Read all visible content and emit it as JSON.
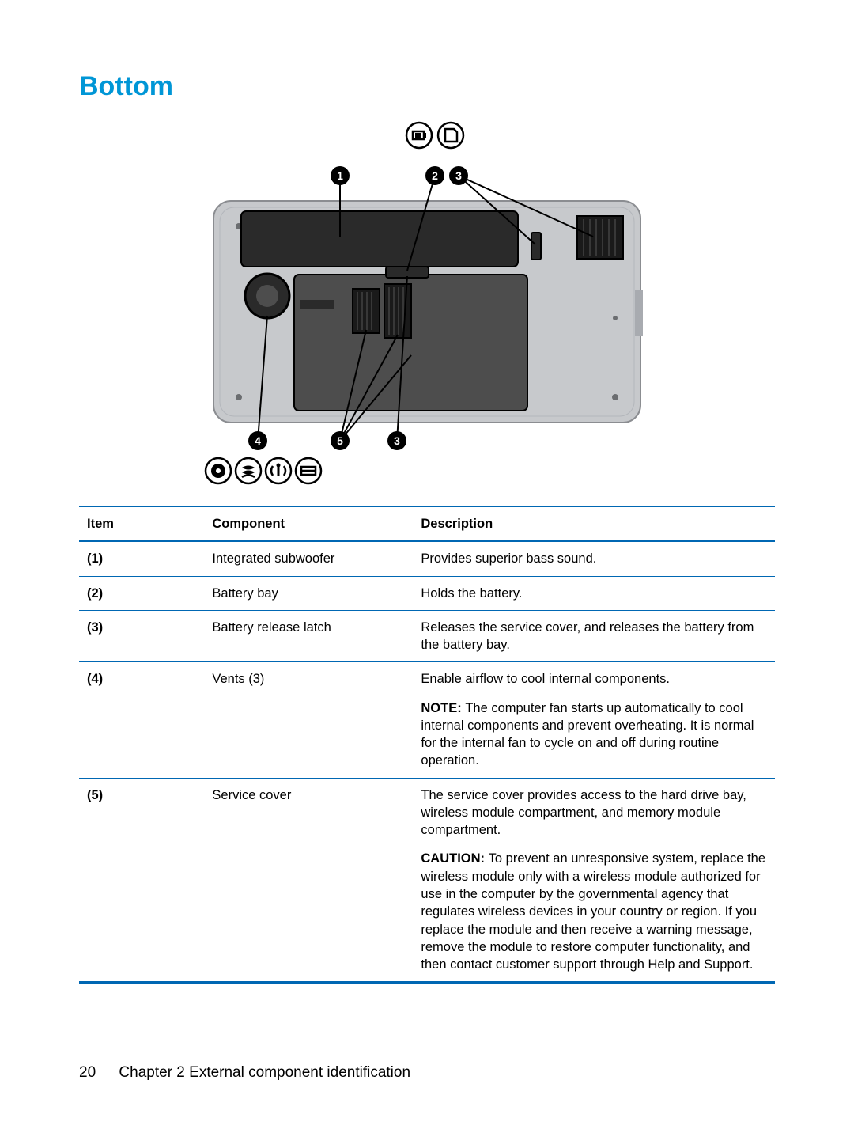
{
  "section_title": "Bottom",
  "footer": {
    "page_number": "20",
    "chapter_label": "Chapter 2   External component identification"
  },
  "table": {
    "headers": {
      "item": "Item",
      "component": "Component",
      "description": "Description"
    },
    "rows": [
      {
        "item": "(1)",
        "component": "Integrated subwoofer",
        "description": [
          {
            "type": "text",
            "text": "Provides superior bass sound."
          }
        ]
      },
      {
        "item": "(2)",
        "component": "Battery bay",
        "description": [
          {
            "type": "text",
            "text": "Holds the battery."
          }
        ]
      },
      {
        "item": "(3)",
        "component": "Battery release latch",
        "description": [
          {
            "type": "text",
            "text": "Releases the service cover, and releases the battery from the battery bay."
          }
        ]
      },
      {
        "item": "(4)",
        "component": "Vents (3)",
        "description": [
          {
            "type": "text",
            "text": "Enable airflow to cool internal components."
          },
          {
            "type": "note",
            "label": "NOTE:",
            "text": "The computer fan starts up automatically to cool internal components and prevent overheating. It is normal for the internal fan to cycle on and off during routine operation."
          }
        ]
      },
      {
        "item": "(5)",
        "component": "Service cover",
        "description": [
          {
            "type": "text",
            "text": "The service cover provides access to the hard drive bay, wireless module compartment, and memory module compartment."
          },
          {
            "type": "caution",
            "label": "CAUTION:",
            "text": "To prevent an unresponsive system, replace the wireless module only with a wireless module authorized for use in the computer by the governmental agency that regulates wireless devices in your country or region. If you replace the module and then receive a warning message, remove the module to restore computer functionality, and then contact customer support through Help and Support."
          }
        ]
      }
    ]
  },
  "diagram": {
    "callouts_top": [
      "1",
      "2",
      "3"
    ],
    "callouts_bottom": [
      "4",
      "5",
      "3"
    ],
    "colors": {
      "body": "#c7c9cc",
      "body_dark": "#a8abb0",
      "panel": "#2a2a2a",
      "panel_mid": "#4d4d4d",
      "vent": "#1a1a1a",
      "screw": "#6b6d70",
      "accent": "#0096d6",
      "table_rule": "#0067b3"
    }
  }
}
